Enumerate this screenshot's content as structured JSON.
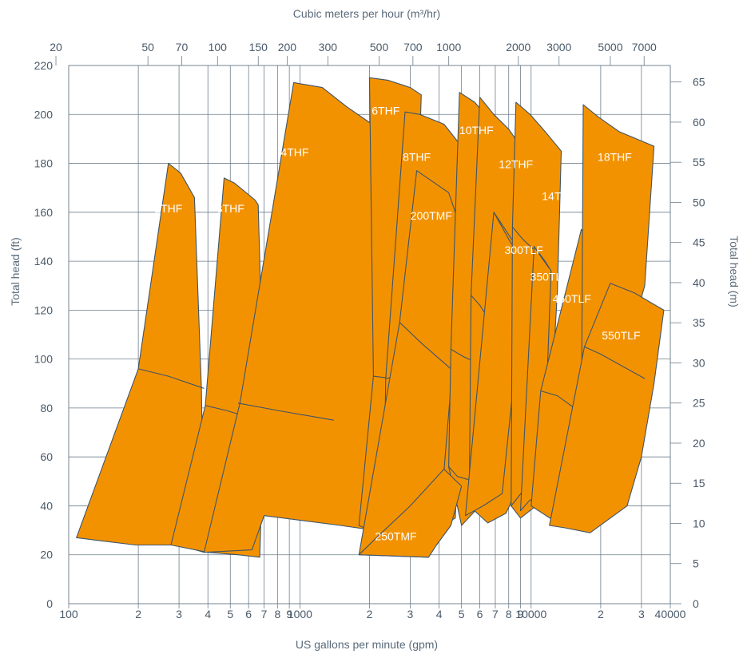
{
  "chart_data": {
    "type": "area",
    "title": "",
    "xlabel": "US gallons per minute (gpm)",
    "ylabel": "Total head (ft)",
    "top_xlabel": "Cubic meters per hour (m³/hr)",
    "right_ylabel": "Total head (m)",
    "x_scale": "log",
    "xlim": [
      100,
      40000
    ],
    "ylim": [
      0,
      220
    ],
    "grid": true,
    "x_ticks": [
      {
        "v": 100,
        "t": "100"
      },
      {
        "v": 200,
        "t": "2"
      },
      {
        "v": 300,
        "t": "3"
      },
      {
        "v": 400,
        "t": "4"
      },
      {
        "v": 500,
        "t": "5"
      },
      {
        "v": 600,
        "t": "6"
      },
      {
        "v": 700,
        "t": "7"
      },
      {
        "v": 800,
        "t": "8"
      },
      {
        "v": 900,
        "t": "9"
      },
      {
        "v": 1000,
        "t": "1000"
      },
      {
        "v": 2000,
        "t": "2"
      },
      {
        "v": 3000,
        "t": "3"
      },
      {
        "v": 4000,
        "t": "4"
      },
      {
        "v": 5000,
        "t": "5"
      },
      {
        "v": 6000,
        "t": "6"
      },
      {
        "v": 7000,
        "t": "7"
      },
      {
        "v": 8000,
        "t": "8"
      },
      {
        "v": 9000,
        "t": "9"
      },
      {
        "v": 10000,
        "t": "10000"
      },
      {
        "v": 20000,
        "t": "2"
      },
      {
        "v": 30000,
        "t": "3"
      },
      {
        "v": 40000,
        "t": "40000"
      }
    ],
    "top_ticks": [
      {
        "v": 20,
        "t": "20"
      },
      {
        "v": 50,
        "t": "50"
      },
      {
        "v": 70,
        "t": "70"
      },
      {
        "v": 100,
        "t": "100"
      },
      {
        "v": 150,
        "t": "150"
      },
      {
        "v": 200,
        "t": "200"
      },
      {
        "v": 300,
        "t": "300"
      },
      {
        "v": 500,
        "t": "500"
      },
      {
        "v": 700,
        "t": "700"
      },
      {
        "v": 1000,
        "t": "1000"
      },
      {
        "v": 2000,
        "t": "2000"
      },
      {
        "v": 3000,
        "t": "3000"
      },
      {
        "v": 5000,
        "t": "5000"
      },
      {
        "v": 7000,
        "t": "7000"
      }
    ],
    "y_ticks": [
      0,
      20,
      40,
      60,
      80,
      100,
      120,
      140,
      160,
      180,
      200,
      220
    ],
    "right_ticks": [
      0,
      5,
      10,
      15,
      20,
      25,
      30,
      35,
      40,
      45,
      50,
      55,
      60,
      65
    ],
    "regions": [
      {
        "name": "2THF",
        "outline": [
          [
            108,
            27
          ],
          [
            200,
            96
          ],
          [
            270,
            180
          ],
          [
            305,
            176
          ],
          [
            350,
            166
          ],
          [
            375,
            88
          ],
          [
            385,
            21
          ],
          [
            300,
            24
          ],
          [
            195,
            24
          ],
          [
            130,
            26
          ]
        ],
        "dividers": [
          [
            [
              200,
              96
            ],
            [
              270,
              93
            ],
            [
              385,
              88
            ]
          ]
        ],
        "label": {
          "x": 270,
          "y": 160
        }
      },
      {
        "name": "3THF",
        "outline": [
          [
            277,
            24
          ],
          [
            390,
            81
          ],
          [
            470,
            174
          ],
          [
            520,
            172
          ],
          [
            640,
            165
          ],
          [
            660,
            163
          ],
          [
            700,
            75
          ],
          [
            670,
            19
          ],
          [
            540,
            20
          ],
          [
            400,
            21
          ]
        ],
        "dividers": [
          [
            [
              390,
              81
            ],
            [
              480,
              79
            ],
            [
              660,
              75
            ]
          ]
        ],
        "label": {
          "x": 500,
          "y": 160
        }
      },
      {
        "name": "4THF",
        "outline": [
          [
            385,
            21
          ],
          [
            550,
            82
          ],
          [
            940,
            213
          ],
          [
            1250,
            211
          ],
          [
            1600,
            203
          ],
          [
            2050,
            196
          ],
          [
            2150,
            92
          ],
          [
            2100,
            30
          ],
          [
            1500,
            32
          ],
          [
            700,
            36
          ],
          [
            620,
            22
          ]
        ],
        "dividers": [
          [
            [
              540,
              82
            ],
            [
              800,
              79
            ],
            [
              1400,
              75
            ]
          ]
        ],
        "label": {
          "x": 950,
          "y": 183
        }
      },
      {
        "name": "6THF",
        "outline": [
          [
            1800,
            32
          ],
          [
            2080,
            93
          ],
          [
            2000,
            215
          ],
          [
            2400,
            214
          ],
          [
            3000,
            211
          ],
          [
            3350,
            208
          ],
          [
            3200,
            150
          ],
          [
            2900,
            40
          ],
          [
            2300,
            36
          ],
          [
            1900,
            31
          ]
        ],
        "dividers": [
          [
            [
              2080,
              93
            ],
            [
              2500,
              92
            ],
            [
              3100,
              94
            ]
          ]
        ],
        "label": {
          "x": 2350,
          "y": 200
        }
      },
      {
        "name": "8THF",
        "outline": [
          [
            2300,
            36
          ],
          [
            2350,
            92
          ],
          [
            2850,
            201
          ],
          [
            3300,
            200
          ],
          [
            4200,
            196
          ],
          [
            5500,
            182
          ],
          [
            5200,
            130
          ],
          [
            4700,
            35
          ],
          [
            3800,
            30
          ],
          [
            2800,
            31
          ]
        ],
        "dividers": [
          [
            [
              2350,
              92
            ],
            [
              3000,
              94
            ],
            [
              4200,
              96
            ]
          ]
        ],
        "label": {
          "x": 3200,
          "y": 181
        }
      },
      {
        "name": "200TMF",
        "outline": [
          [
            1800,
            20
          ],
          [
            2700,
            115
          ],
          [
            3200,
            177
          ],
          [
            4400,
            168
          ],
          [
            4900,
            155
          ],
          [
            4600,
            100
          ],
          [
            4000,
            30
          ],
          [
            3600,
            19
          ]
        ],
        "dividers": [
          [
            [
              2700,
              115
            ],
            [
              3400,
              106
            ],
            [
              4500,
              96
            ]
          ]
        ],
        "label": {
          "x": 3700,
          "y": 157
        }
      },
      {
        "name": "10THF",
        "outline": [
          [
            4400,
            56
          ],
          [
            4500,
            104
          ],
          [
            4900,
            209
          ],
          [
            5700,
            205
          ],
          [
            6600,
            198
          ],
          [
            7800,
            185
          ],
          [
            7700,
            150
          ],
          [
            7200,
            50
          ],
          [
            6000,
            40
          ],
          [
            5000,
            32
          ]
        ],
        "dividers": [
          [
            [
              4500,
              104
            ],
            [
              5100,
              101
            ],
            [
              6300,
              97
            ]
          ],
          [
            [
              4400,
              56
            ],
            [
              4800,
              52
            ],
            [
              5700,
              50
            ]
          ]
        ],
        "label": {
          "x": 5800,
          "y": 192
        }
      },
      {
        "name": "12THF",
        "outline": [
          [
            5400,
            40
          ],
          [
            5500,
            126
          ],
          [
            6000,
            207
          ],
          [
            6900,
            200
          ],
          [
            8000,
            194
          ],
          [
            9800,
            182
          ],
          [
            9500,
            145
          ],
          [
            9000,
            50
          ],
          [
            7800,
            37
          ],
          [
            6500,
            33
          ]
        ],
        "dividers": [
          [
            [
              5500,
              126
            ],
            [
              6000,
              122
            ],
            [
              6700,
              115
            ]
          ],
          [
            [
              5400,
              40
            ],
            [
              6000,
              45
            ],
            [
              7300,
              47
            ]
          ]
        ],
        "label": {
          "x": 8600,
          "y": 178
        }
      },
      {
        "name": "300TLF",
        "outline": [
          [
            5200,
            36
          ],
          [
            6900,
            160
          ],
          [
            8000,
            149
          ],
          [
            9000,
            141
          ],
          [
            8500,
            95
          ],
          [
            7500,
            45
          ],
          [
            6200,
            40
          ]
        ],
        "dividers": [
          [
            [
              6900,
              160
            ],
            [
              7600,
              154
            ],
            [
              8500,
              147
            ]
          ]
        ],
        "label": {
          "x": 9300,
          "y": 143
        }
      },
      {
        "name": "14THF",
        "outline": [
          [
            8200,
            40
          ],
          [
            8300,
            154
          ],
          [
            8600,
            205
          ],
          [
            9900,
            200
          ],
          [
            11500,
            193
          ],
          [
            13500,
            185
          ],
          [
            13000,
            128
          ],
          [
            12000,
            70
          ],
          [
            10500,
            40
          ],
          [
            9000,
            35
          ]
        ],
        "dividers": [
          [
            [
              8300,
              154
            ],
            [
              9200,
              149
            ],
            [
              10200,
              145
            ]
          ],
          [
            [
              8200,
              40
            ],
            [
              9200,
              46
            ],
            [
              10200,
              50
            ]
          ]
        ],
        "label": {
          "x": 13200,
          "y": 165
        }
      },
      {
        "name": "350TLF",
        "outline": [
          [
            9000,
            38
          ],
          [
            10300,
            146
          ],
          [
            11500,
            140
          ],
          [
            12200,
            136
          ],
          [
            11700,
            90
          ],
          [
            11000,
            45
          ],
          [
            9800,
            42
          ]
        ],
        "dividers": [
          [
            [
              10300,
              146
            ],
            [
              11000,
              142
            ],
            [
              12000,
              137
            ]
          ]
        ],
        "label": {
          "x": 12000,
          "y": 132
        }
      },
      {
        "name": "450TLF",
        "outline": [
          [
            10000,
            40
          ],
          [
            11000,
            87
          ],
          [
            16500,
            153
          ],
          [
            19500,
            145
          ],
          [
            22500,
            137
          ],
          [
            21000,
            90
          ],
          [
            17500,
            35
          ],
          [
            13000,
            33
          ]
        ],
        "dividers": [
          [
            [
              11000,
              87
            ],
            [
              13000,
              85
            ],
            [
              17000,
              77
            ]
          ]
        ],
        "label": {
          "x": 15000,
          "y": 123
        }
      },
      {
        "name": "18THF",
        "outline": [
          [
            16500,
            71
          ],
          [
            16800,
            204
          ],
          [
            19500,
            199
          ],
          [
            24000,
            193
          ],
          [
            34000,
            187
          ],
          [
            31000,
            130
          ],
          [
            27000,
            110
          ],
          [
            21000,
            100
          ]
        ],
        "dividers": [],
        "label": {
          "x": 23000,
          "y": 181
        }
      },
      {
        "name": "550TLF",
        "outline": [
          [
            12000,
            32
          ],
          [
            17000,
            105
          ],
          [
            22000,
            131
          ],
          [
            28000,
            127
          ],
          [
            37500,
            120
          ],
          [
            34000,
            90
          ],
          [
            30000,
            60
          ],
          [
            26000,
            40
          ],
          [
            18000,
            29
          ],
          [
            14000,
            31
          ]
        ],
        "dividers": [
          [
            [
              17000,
              105
            ],
            [
              20000,
              102
            ],
            [
              31000,
              92
            ]
          ]
        ],
        "label": {
          "x": 24500,
          "y": 108
        }
      },
      {
        "name": "250TMF",
        "outline": [
          [
            1800,
            20
          ],
          [
            2200,
            28
          ],
          [
            3000,
            40
          ],
          [
            4200,
            55
          ],
          [
            5000,
            48
          ],
          [
            4500,
            32
          ],
          [
            3900,
            24
          ],
          [
            3600,
            19
          ]
        ],
        "dividers": [],
        "label": {
          "x": 2600,
          "y": 26
        }
      }
    ]
  }
}
